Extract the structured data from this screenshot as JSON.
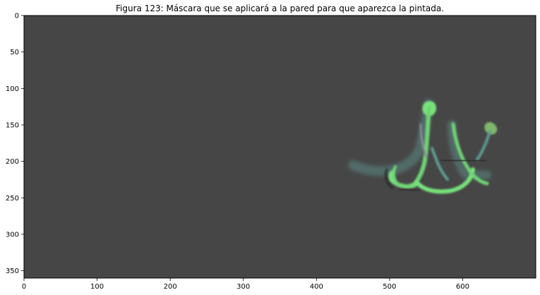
{
  "chart_data": {
    "type": "heatmap",
    "title": "Figura 123: Máscara que se aplicará a la pared para que aparezca la pintada.",
    "xlabel": "",
    "ylabel": "",
    "xlim": [
      0,
      700
    ],
    "ylim": [
      360,
      0
    ],
    "x_ticks": [
      0,
      100,
      200,
      300,
      400,
      500,
      600
    ],
    "y_ticks": [
      0,
      50,
      100,
      150,
      200,
      250,
      300,
      350
    ],
    "x_tick_labels": [
      "0",
      "100",
      "200",
      "300",
      "400",
      "500",
      "600"
    ],
    "y_tick_labels": [
      "0",
      "50",
      "100",
      "150",
      "200",
      "250",
      "300",
      "350"
    ],
    "grid": false,
    "colors": {
      "background": "#464646",
      "stroke_green": "#77e27c",
      "stroke_teal": "#5d9e93",
      "stroke_dark": "#2b2b2b",
      "stroke_gray": "#8a8a96"
    }
  }
}
